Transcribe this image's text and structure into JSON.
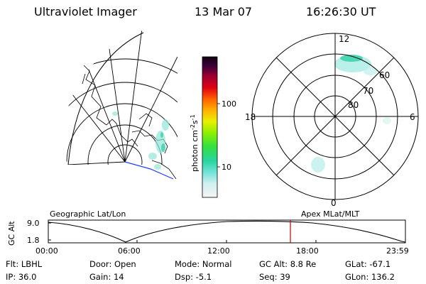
{
  "header": {
    "instrument": "Ultraviolet Imager",
    "date": "13 Mar 07",
    "time": "16:26:30 UT"
  },
  "colorbar": {
    "unit_label": "photon cm",
    "unit_exp1": "-2",
    "unit_mid": "s",
    "unit_exp2": "-1",
    "ticks": [
      "100",
      "10"
    ]
  },
  "polar_plot": {
    "mlt_labels": {
      "top": "12",
      "left": "18",
      "right": "6",
      "bottom": "0"
    },
    "lat_labels": [
      "60",
      "70",
      "80"
    ]
  },
  "captions": {
    "left": "Geographic Lat/Lon",
    "right": "Apex MLat/MLT"
  },
  "altitude_plot": {
    "ylabel": "GC Alt",
    "yticks": [
      "9.0",
      "1.8"
    ],
    "xticks": [
      "00:00",
      "06:00",
      "12:00",
      "18:00",
      "23:59"
    ],
    "marker_time": "16:26:30",
    "marker_color": "#cc0000"
  },
  "info": {
    "filter": "Flt: LBHL",
    "ip": "IP: 36.0",
    "door": "Door: Open",
    "gain": "Gain: 14",
    "mode": "Mode: Normal",
    "dsp": "Dsp:     -5.1",
    "gc_alt": "GC Alt: 8.8 Re",
    "seq": "Seq: 39",
    "glat": "GLat: -67.1",
    "glon": "GLon: 136.2"
  }
}
